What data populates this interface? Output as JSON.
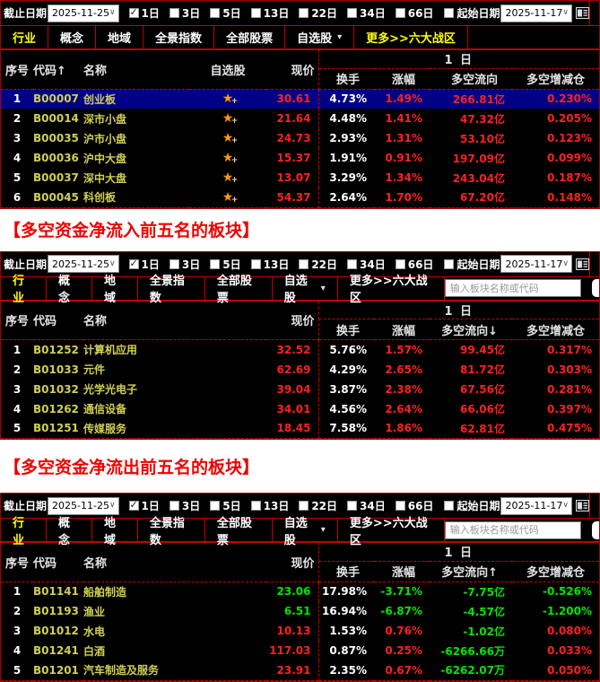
{
  "colors": {
    "up_red": "#ff2020",
    "down_green": "#00e600",
    "code_yellow": "#cfcf55",
    "tab_active_yellow": "#ffff00",
    "selection_blue": "#000085",
    "border_red": "#c00000",
    "caption_red": "#ee0000"
  },
  "toolbar": {
    "end_date_label": "截止日期",
    "end_date_value": "2025-11-25",
    "periods": [
      {
        "label": "1日",
        "checked": true
      },
      {
        "label": "3日",
        "checked": false
      },
      {
        "label": "5日",
        "checked": false
      },
      {
        "label": "13日",
        "checked": false
      },
      {
        "label": "22日",
        "checked": false
      },
      {
        "label": "34日",
        "checked": false
      },
      {
        "label": "66日",
        "checked": false
      }
    ],
    "start_date_label": "起始日期",
    "start_date_checked": false,
    "start_date_value": "2025-11-17"
  },
  "tabs": [
    "行业",
    "概念",
    "地域",
    "全景指数",
    "全部股票",
    "自选股",
    "更多>>六大战区"
  ],
  "search_placeholder": "输入板块名称或代码",
  "captions": [
    "【多空资金净流入前五名的板块】",
    "【多空资金净流出前五名的板块】"
  ],
  "panels": [
    {
      "has_watch_col": true,
      "has_search": false,
      "more_highlight": true,
      "name_col_width": 118,
      "header": {
        "seq": "序号",
        "code": "代码↑",
        "name": "名称",
        "watch": "自选股",
        "price": "现价",
        "group": "1 日",
        "turnover": "换手",
        "change": "涨幅",
        "flow": "多空流向",
        "delta": "多空增减仓"
      },
      "rows": [
        {
          "seq": "1",
          "code": "B00007",
          "name": "创业板",
          "price": "30.61",
          "price_color": "red",
          "turnover": "4.73%",
          "turnover_color": "white",
          "change": "1.49%",
          "change_color": "red",
          "flow": "266.81亿",
          "flow_color": "red",
          "delta": "0.230%",
          "delta_color": "red",
          "selected": true
        },
        {
          "seq": "2",
          "code": "B00014",
          "name": "深市小盘",
          "price": "21.64",
          "price_color": "red",
          "turnover": "4.48%",
          "turnover_color": "white",
          "change": "1.41%",
          "change_color": "red",
          "flow": "47.32亿",
          "flow_color": "red",
          "delta": "0.205%",
          "delta_color": "red",
          "selected": false
        },
        {
          "seq": "3",
          "code": "B00035",
          "name": "沪市小盘",
          "price": "24.73",
          "price_color": "red",
          "turnover": "2.93%",
          "turnover_color": "white",
          "change": "1.31%",
          "change_color": "red",
          "flow": "53.10亿",
          "flow_color": "red",
          "delta": "0.123%",
          "delta_color": "red",
          "selected": false
        },
        {
          "seq": "4",
          "code": "B00036",
          "name": "沪中大盘",
          "price": "15.37",
          "price_color": "red",
          "turnover": "1.91%",
          "turnover_color": "white",
          "change": "0.91%",
          "change_color": "red",
          "flow": "197.09亿",
          "flow_color": "red",
          "delta": "0.099%",
          "delta_color": "red",
          "selected": false
        },
        {
          "seq": "5",
          "code": "B00037",
          "name": "深中大盘",
          "price": "13.07",
          "price_color": "red",
          "turnover": "3.29%",
          "turnover_color": "white",
          "change": "1.34%",
          "change_color": "red",
          "flow": "243.04亿",
          "flow_color": "red",
          "delta": "0.187%",
          "delta_color": "red",
          "selected": false
        },
        {
          "seq": "6",
          "code": "B00045",
          "name": "科创板",
          "price": "54.37",
          "price_color": "red",
          "turnover": "2.64%",
          "turnover_color": "white",
          "change": "1.70%",
          "change_color": "red",
          "flow": "67.20亿",
          "flow_color": "red",
          "delta": "0.148%",
          "delta_color": "red",
          "selected": false
        }
      ]
    },
    {
      "has_watch_col": false,
      "has_search": true,
      "more_highlight": false,
      "name_col_width": 204,
      "header": {
        "seq": "序号",
        "code": "代码",
        "name": "名称",
        "watch": "自选股",
        "price": "现价",
        "group": "1 日",
        "turnover": "换手",
        "change": "涨幅",
        "flow": "多空流向↓",
        "delta": "多空增减仓"
      },
      "rows": [
        {
          "seq": "1",
          "code": "B01252",
          "name": "计算机应用",
          "price": "32.52",
          "price_color": "red",
          "turnover": "5.76%",
          "turnover_color": "white",
          "change": "1.57%",
          "change_color": "red",
          "flow": "99.45亿",
          "flow_color": "red",
          "delta": "0.317%",
          "delta_color": "red",
          "selected": false
        },
        {
          "seq": "2",
          "code": "B01033",
          "name": "元件",
          "price": "62.69",
          "price_color": "red",
          "turnover": "4.29%",
          "turnover_color": "white",
          "change": "2.65%",
          "change_color": "red",
          "flow": "81.72亿",
          "flow_color": "red",
          "delta": "0.303%",
          "delta_color": "red",
          "selected": false
        },
        {
          "seq": "3",
          "code": "B01032",
          "name": "光学光电子",
          "price": "39.04",
          "price_color": "red",
          "turnover": "3.87%",
          "turnover_color": "white",
          "change": "2.38%",
          "change_color": "red",
          "flow": "67.56亿",
          "flow_color": "red",
          "delta": "0.281%",
          "delta_color": "red",
          "selected": false
        },
        {
          "seq": "4",
          "code": "B01262",
          "name": "通信设备",
          "price": "34.01",
          "price_color": "red",
          "turnover": "4.56%",
          "turnover_color": "white",
          "change": "2.64%",
          "change_color": "red",
          "flow": "66.06亿",
          "flow_color": "red",
          "delta": "0.397%",
          "delta_color": "red",
          "selected": false
        },
        {
          "seq": "5",
          "code": "B01251",
          "name": "传媒服务",
          "price": "18.45",
          "price_color": "red",
          "turnover": "7.58%",
          "turnover_color": "white",
          "change": "1.86%",
          "change_color": "red",
          "flow": "62.81亿",
          "flow_color": "red",
          "delta": "0.475%",
          "delta_color": "red",
          "selected": false
        }
      ]
    },
    {
      "has_watch_col": false,
      "has_search": true,
      "more_highlight": false,
      "name_col_width": 204,
      "header": {
        "seq": "序号",
        "code": "代码",
        "name": "名称",
        "watch": "自选股",
        "price": "现价",
        "group": "1 日",
        "turnover": "换手",
        "change": "涨幅",
        "flow": "多空流向↑",
        "delta": "多空增减仓"
      },
      "rows": [
        {
          "seq": "1",
          "code": "B01141",
          "name": "船舶制造",
          "price": "23.06",
          "price_color": "green",
          "turnover": "17.98%",
          "turnover_color": "white",
          "change": "-3.71%",
          "change_color": "green",
          "flow": "-7.75亿",
          "flow_color": "green",
          "delta": "-0.526%",
          "delta_color": "green",
          "selected": false
        },
        {
          "seq": "2",
          "code": "B01193",
          "name": "渔业",
          "price": "6.51",
          "price_color": "green",
          "turnover": "16.94%",
          "turnover_color": "white",
          "change": "-6.87%",
          "change_color": "green",
          "flow": "-4.57亿",
          "flow_color": "green",
          "delta": "-1.200%",
          "delta_color": "green",
          "selected": false
        },
        {
          "seq": "3",
          "code": "B01012",
          "name": "水电",
          "price": "10.13",
          "price_color": "red",
          "turnover": "1.53%",
          "turnover_color": "white",
          "change": "0.76%",
          "change_color": "red",
          "flow": "-1.02亿",
          "flow_color": "green",
          "delta": "0.080%",
          "delta_color": "red",
          "selected": false
        },
        {
          "seq": "4",
          "code": "B01241",
          "name": "白酒",
          "price": "117.03",
          "price_color": "red",
          "turnover": "0.87%",
          "turnover_color": "white",
          "change": "0.25%",
          "change_color": "red",
          "flow": "-6266.66万",
          "flow_color": "green",
          "delta": "0.033%",
          "delta_color": "red",
          "selected": false
        },
        {
          "seq": "5",
          "code": "B01201",
          "name": "汽车制造及服务",
          "price": "23.91",
          "price_color": "red",
          "turnover": "2.35%",
          "turnover_color": "white",
          "change": "0.67%",
          "change_color": "red",
          "flow": "-6262.07万",
          "flow_color": "green",
          "delta": "0.050%",
          "delta_color": "red",
          "selected": false
        }
      ]
    }
  ]
}
